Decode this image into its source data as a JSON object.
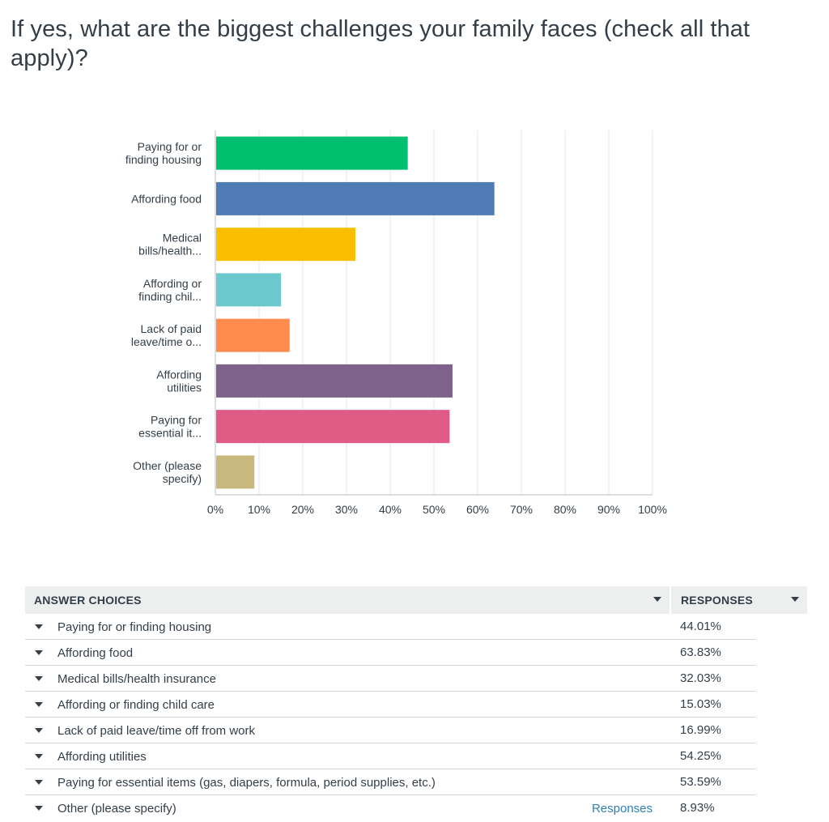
{
  "question": {
    "title": "If yes, what are the biggest challenges your family faces (check all that apply)?"
  },
  "chart_data": {
    "type": "bar",
    "orientation": "horizontal",
    "categories": [
      [
        "Paying for or",
        "finding housing"
      ],
      [
        "Affording food"
      ],
      [
        "Medical",
        "bills/health..."
      ],
      [
        "Affording or",
        "finding chil..."
      ],
      [
        "Lack of paid",
        "leave/time o..."
      ],
      [
        "Affording",
        "utilities"
      ],
      [
        "Paying for",
        "essential it..."
      ],
      [
        "Other (please",
        "specify)"
      ]
    ],
    "values": [
      44.01,
      63.83,
      32.03,
      15.03,
      16.99,
      54.25,
      53.59,
      8.93
    ],
    "colors": [
      "#00bf6f",
      "#507cb6",
      "#f9be00",
      "#6bc8cd",
      "#ff8b4f",
      "#7f628b",
      "#e05c86",
      "#c9b97e"
    ],
    "xlim": [
      0,
      100
    ],
    "ticks": [
      "0%",
      "10%",
      "20%",
      "30%",
      "40%",
      "50%",
      "60%",
      "70%",
      "80%",
      "90%",
      "100%"
    ],
    "grid": true
  },
  "table": {
    "header_answer": "ANSWER CHOICES",
    "header_responses": "RESPONSES",
    "rows": [
      {
        "label": "Paying for or finding housing",
        "pct": "44.01%"
      },
      {
        "label": "Affording food",
        "pct": "63.83%"
      },
      {
        "label": "Medical bills/health insurance",
        "pct": "32.03%"
      },
      {
        "label": "Affording or finding child care",
        "pct": "15.03%"
      },
      {
        "label": "Lack of paid leave/time off from work",
        "pct": "16.99%"
      },
      {
        "label": "Affording utilities",
        "pct": "54.25%"
      },
      {
        "label": "Paying for essential items (gas, diapers, formula, period supplies, etc.)",
        "pct": "53.59%"
      },
      {
        "label": "Other (please specify)",
        "pct": "8.93%",
        "link": "Responses"
      }
    ]
  }
}
